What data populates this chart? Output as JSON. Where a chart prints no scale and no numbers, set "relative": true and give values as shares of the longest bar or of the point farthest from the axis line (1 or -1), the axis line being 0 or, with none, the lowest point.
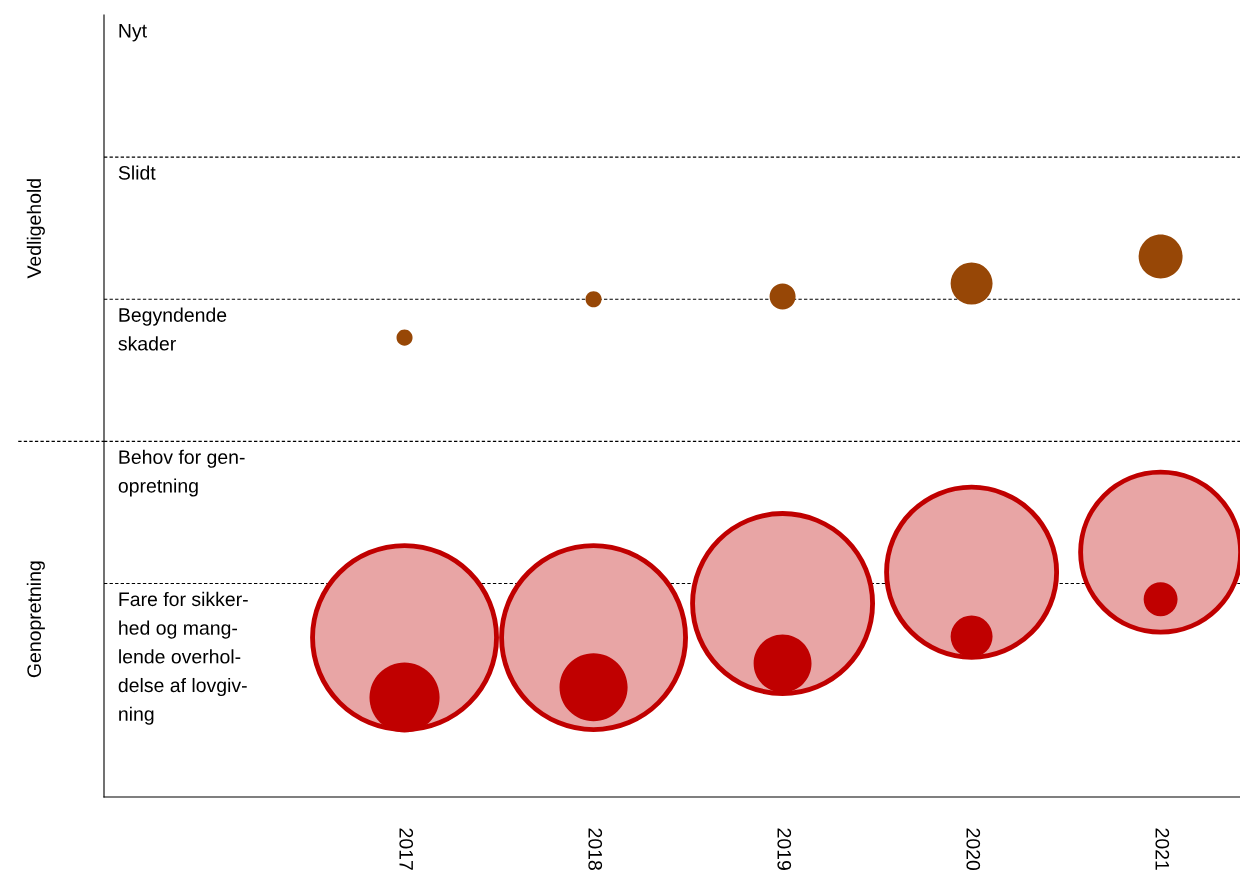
{
  "chart_data": {
    "type": "bubble",
    "categories": [
      "2017",
      "2018",
      "2019",
      "2020",
      "2021"
    ],
    "relative": true,
    "series": [
      {
        "color": "#974706",
        "values": [
          0.85,
          0.921,
          0.926,
          0.95,
          1
        ],
        "sizes": [
          0.0076,
          0.0076,
          0.02,
          0.052,
          0.057
        ]
      },
      {
        "color": "#e8a5a5",
        "values": [
          0.295,
          0.295,
          0.358,
          0.416,
          0.453
        ],
        "sizes": [
          1,
          1,
          0.957,
          0.854,
          0.756
        ]
      },
      {
        "color": "#c00000",
        "values": [
          0.184,
          0.203,
          0.247,
          0.297,
          0.366
        ],
        "sizes": [
          0.145,
          0.137,
          0.099,
          0.052,
          0.034
        ]
      }
    ],
    "ref_lines": [
      {
        "axis": "y",
        "value": 0.395,
        "line_style": "dashed",
        "label": "Fare for sikker-\nhed og mang-\nlende overhol-\ndelse af lovgiv-\nning"
      },
      {
        "axis": "y",
        "value": 0.658,
        "line_style": "dashed",
        "label": "Behov for gen-\nopretning"
      },
      {
        "axis": "y",
        "value": 0.921,
        "line_style": "dashed",
        "label": "Begyndende\nskader"
      },
      {
        "axis": "y",
        "value": 1.184,
        "line_style": "dashed",
        "label": "Slidt"
      }
    ],
    "annotations": [
      "Vedligehold",
      "Genopretning",
      "Nyt"
    ],
    "grid": false,
    "marker": "circle"
  }
}
